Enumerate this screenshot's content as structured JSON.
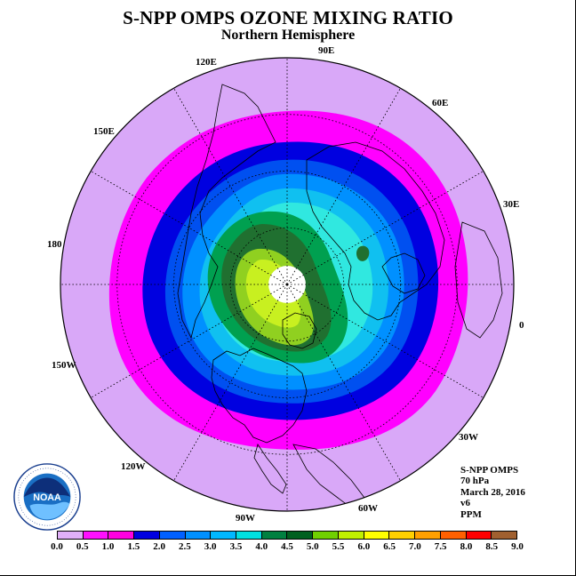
{
  "title": "S-NPP OMPS OZONE MIXING RATIO",
  "subtitle": "Northern Hemisphere",
  "longitude_labels": {
    "l90e": "90E",
    "l60e": "60E",
    "l30e": "30E",
    "l0": "0",
    "l30w": "30W",
    "l60w": "60W",
    "l90w": "90W",
    "l120w": "120W",
    "l150w": "150W",
    "l180": "180",
    "l150e": "150E",
    "l120e": "120E"
  },
  "info": {
    "instrument": "S-NPP OMPS",
    "level": "70 hPa",
    "date": "March 28, 2016",
    "version": "v6",
    "units": "PPM"
  },
  "logo": {
    "icon": "noaa-logo-icon",
    "text": "NOAA"
  },
  "colorbar": {
    "ticks": [
      "0.0",
      "0.5",
      "1.0",
      "1.5",
      "2.0",
      "2.5",
      "3.0",
      "3.5",
      "4.0",
      "4.5",
      "5.0",
      "5.5",
      "6.0",
      "6.5",
      "7.0",
      "7.5",
      "8.0",
      "8.5",
      "9.0"
    ],
    "colors": [
      "#c080f0",
      "#e0b0f8",
      "#ff10ff",
      "#ff00e0",
      "#0000e0",
      "#0060ff",
      "#0090ff",
      "#00b8ff",
      "#00e0e0",
      "#008040",
      "#006020",
      "#70d000",
      "#c0f000",
      "#ffff00",
      "#ffd000",
      "#ffa000",
      "#ff6000",
      "#ff0000",
      "#a06030"
    ]
  },
  "map": {
    "band_colors": [
      "#d9a8f8",
      "#ff00ff",
      "#0000e0",
      "#0050f0",
      "#0090ff",
      "#10c0f0",
      "#30e8e0",
      "#00a050",
      "#207030",
      "#90d020",
      "#c8f020"
    ],
    "pole_fill": "#ffffff"
  }
}
